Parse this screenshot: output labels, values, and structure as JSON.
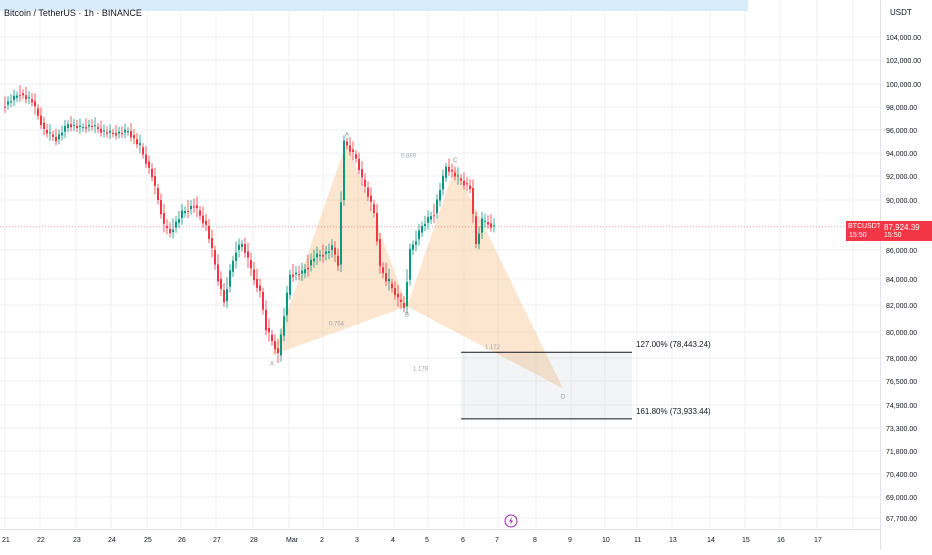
{
  "chart_data": {
    "type": "candlestick",
    "symbol_title": "Bitcoin / TetherUS · 1h · BINANCE",
    "currency": "USDT",
    "yticks": [
      104000,
      102000,
      100000,
      98000,
      96000,
      94000,
      92000,
      90000,
      88000,
      86000,
      84000,
      82000,
      80000,
      78000,
      76500,
      74900,
      73300,
      71800,
      70400,
      69000,
      67700
    ],
    "ytick_labels": [
      "104,000.00",
      "102,000.00",
      "100,000.00",
      "98,000.00",
      "96,000.00",
      "94,000.00",
      "92,000.00",
      "90,000.00",
      "88,000.00",
      "86,000.00",
      "84,000.00",
      "82,000.00",
      "80,000.00",
      "78,000.00",
      "76,500.00",
      "74,900.00",
      "73,300.00",
      "71,800.00",
      "70,400.00",
      "69,000.00",
      "67,700.00"
    ],
    "x_labels": [
      "21",
      "22",
      "23",
      "24",
      "25",
      "26",
      "27",
      "28",
      "Mar",
      "2",
      "3",
      "4",
      "5",
      "6",
      "7",
      "8",
      "9",
      "10",
      "11",
      "13",
      "14",
      "15",
      "16",
      "17"
    ],
    "price_path": [
      [
        0,
        98000
      ],
      [
        6,
        99200
      ],
      [
        10,
        98500
      ],
      [
        14,
        96000
      ],
      [
        18,
        95200
      ],
      [
        22,
        96500
      ],
      [
        26,
        96200
      ],
      [
        30,
        96400
      ],
      [
        34,
        95800
      ],
      [
        38,
        95700
      ],
      [
        42,
        95900
      ],
      [
        46,
        94500
      ],
      [
        50,
        92000
      ],
      [
        52,
        90000
      ],
      [
        54,
        88000
      ],
      [
        56,
        87500
      ],
      [
        60,
        89000
      ],
      [
        64,
        89600
      ],
      [
        68,
        88000
      ],
      [
        72,
        84000
      ],
      [
        74,
        82300
      ],
      [
        76,
        84500
      ],
      [
        78,
        86000
      ],
      [
        80,
        86500
      ],
      [
        82,
        85300
      ],
      [
        84,
        84000
      ],
      [
        86,
        83000
      ],
      [
        88,
        80300
      ],
      [
        90,
        79300
      ],
      [
        92,
        78200
      ],
      [
        96,
        84300
      ],
      [
        100,
        84400
      ],
      [
        104,
        85500
      ],
      [
        108,
        85800
      ],
      [
        110,
        86200
      ],
      [
        112,
        85000
      ],
      [
        114,
        95000
      ],
      [
        116,
        94300
      ],
      [
        118,
        93500
      ],
      [
        120,
        91700
      ],
      [
        124,
        89000
      ],
      [
        126,
        84800
      ],
      [
        128,
        84000
      ],
      [
        130,
        83300
      ],
      [
        132,
        82400
      ],
      [
        134,
        81900
      ],
      [
        136,
        86000
      ],
      [
        138,
        86900
      ],
      [
        140,
        88000
      ],
      [
        144,
        89000
      ],
      [
        148,
        92800
      ],
      [
        152,
        91800
      ],
      [
        156,
        91000
      ],
      [
        158,
        86500
      ],
      [
        160,
        88400
      ],
      [
        162,
        88200
      ],
      [
        164,
        87900
      ]
    ],
    "harmonic_points": [
      {
        "label": "X",
        "x": 89,
        "y": 78200
      },
      {
        "label": "A",
        "x": 114,
        "y": 95000
      },
      {
        "label": "B",
        "x": 134,
        "y": 81900
      },
      {
        "label": "C",
        "x": 150,
        "y": 92800
      },
      {
        "label": "D",
        "x": 186,
        "y": 76000
      }
    ],
    "ratios": [
      {
        "text": "0.869",
        "x": 132,
        "y": 93600
      },
      {
        "text": "0.754",
        "x": 108,
        "y": 80500
      },
      {
        "text": "1.172",
        "x": 160,
        "y": 78700
      },
      {
        "text": "1.178",
        "x": 136,
        "y": 77200
      }
    ],
    "fib_levels": [
      {
        "label": "127.00% (78,443.24)",
        "value": 78443.24
      },
      {
        "label": "161.80% (73,933.44)",
        "value": 73933.44
      }
    ],
    "current_price": {
      "symbol": "BTCUSDT",
      "timer": "15:50",
      "value": "87,924.39"
    },
    "colors": {
      "up": "#089981",
      "down": "#f23645",
      "pattern": "#f7b26b",
      "last_price": "#f23645"
    }
  }
}
